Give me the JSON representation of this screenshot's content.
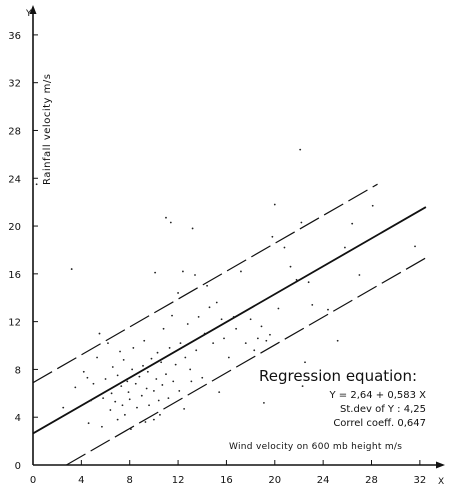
{
  "chart_data": {
    "type": "scatter",
    "title": "",
    "x_axis_letter": "X",
    "y_axis_letter": "Y",
    "xlabel": "Wind  velocity  on 600 mb height  m/s",
    "ylabel": "Rainfall velocity  m/s",
    "xlim": [
      0,
      33.5
    ],
    "ylim": [
      0,
      38
    ],
    "xticks": [
      0,
      4,
      8,
      12,
      16,
      20,
      24,
      28,
      32
    ],
    "yticks": [
      0,
      4,
      8,
      12,
      16,
      20,
      24,
      28,
      32,
      36
    ],
    "grid": false,
    "regression": {
      "intercept": 2.64,
      "slope": 0.583,
      "band_offset": 4.25,
      "x_range": [
        0,
        32.5
      ]
    },
    "annotation": {
      "title": "Regression equation:",
      "lines": [
        "Y = 2,64 + 0,583 X",
        "St.dev  of  Y : 4,25",
        "Correl coeff.  0,647"
      ]
    },
    "points": [
      [
        2.5,
        4.8
      ],
      [
        3.2,
        16.4
      ],
      [
        3.5,
        6.5
      ],
      [
        4.2,
        7.8
      ],
      [
        4.5,
        7.3
      ],
      [
        4.8,
        5.4
      ],
      [
        4.6,
        3.5
      ],
      [
        5.0,
        6.8
      ],
      [
        5.3,
        9.0
      ],
      [
        5.5,
        11.0
      ],
      [
        5.8,
        5.6
      ],
      [
        5.7,
        3.2
      ],
      [
        6.0,
        7.2
      ],
      [
        6.2,
        10.2
      ],
      [
        6.4,
        4.6
      ],
      [
        6.5,
        6.0
      ],
      [
        6.6,
        8.2
      ],
      [
        6.8,
        5.3
      ],
      [
        7.0,
        7.5
      ],
      [
        7.0,
        3.8
      ],
      [
        7.2,
        9.5
      ],
      [
        7.3,
        6.6
      ],
      [
        7.4,
        5.0
      ],
      [
        7.5,
        8.8
      ],
      [
        7.6,
        4.2
      ],
      [
        7.8,
        7.0
      ],
      [
        7.9,
        6.1
      ],
      [
        8.0,
        5.5
      ],
      [
        8.1,
        3.0
      ],
      [
        8.2,
        8.0
      ],
      [
        8.3,
        9.8
      ],
      [
        8.5,
        6.8
      ],
      [
        8.6,
        4.8
      ],
      [
        8.8,
        7.4
      ],
      [
        9.0,
        5.8
      ],
      [
        9.1,
        8.3
      ],
      [
        9.2,
        10.4
      ],
      [
        9.3,
        3.6
      ],
      [
        9.4,
        6.4
      ],
      [
        9.5,
        7.8
      ],
      [
        9.6,
        5.0
      ],
      [
        9.8,
        8.9
      ],
      [
        10.0,
        6.2
      ],
      [
        10.0,
        3.8
      ],
      [
        10.1,
        16.1
      ],
      [
        10.2,
        7.2
      ],
      [
        10.3,
        9.4
      ],
      [
        10.4,
        5.4
      ],
      [
        10.5,
        4.2
      ],
      [
        10.6,
        8.6
      ],
      [
        10.7,
        6.7
      ],
      [
        10.8,
        11.4
      ],
      [
        11.0,
        7.6
      ],
      [
        11.0,
        20.7
      ],
      [
        11.2,
        5.6
      ],
      [
        11.3,
        9.8
      ],
      [
        11.4,
        20.3
      ],
      [
        11.5,
        12.5
      ],
      [
        11.6,
        7.0
      ],
      [
        11.8,
        8.4
      ],
      [
        12.0,
        14.4
      ],
      [
        12.1,
        6.2
      ],
      [
        12.2,
        10.2
      ],
      [
        12.4,
        16.2
      ],
      [
        12.5,
        4.7
      ],
      [
        12.6,
        9.0
      ],
      [
        12.8,
        11.8
      ],
      [
        13.0,
        8.0
      ],
      [
        13.1,
        7.0
      ],
      [
        13.2,
        19.8
      ],
      [
        13.4,
        15.9
      ],
      [
        13.5,
        9.6
      ],
      [
        13.7,
        12.4
      ],
      [
        14.0,
        7.3
      ],
      [
        14.2,
        11.0
      ],
      [
        14.4,
        15.0
      ],
      [
        14.6,
        13.2
      ],
      [
        14.9,
        10.2
      ],
      [
        15.2,
        13.6
      ],
      [
        15.4,
        6.1
      ],
      [
        15.6,
        12.2
      ],
      [
        15.8,
        10.6
      ],
      [
        16.2,
        9.0
      ],
      [
        16.6,
        12.4
      ],
      [
        16.8,
        11.4
      ],
      [
        17.2,
        16.2
      ],
      [
        17.6,
        10.2
      ],
      [
        18.0,
        12.2
      ],
      [
        18.3,
        9.6
      ],
      [
        18.6,
        10.6
      ],
      [
        18.9,
        11.6
      ],
      [
        19.1,
        5.2
      ],
      [
        19.3,
        10.4
      ],
      [
        19.6,
        10.9
      ],
      [
        19.8,
        19.1
      ],
      [
        20.0,
        21.8
      ],
      [
        20.3,
        13.1
      ],
      [
        20.8,
        18.2
      ],
      [
        21.3,
        16.6
      ],
      [
        21.8,
        15.5
      ],
      [
        22.1,
        26.4
      ],
      [
        22.2,
        20.3
      ],
      [
        22.3,
        6.6
      ],
      [
        22.5,
        8.6
      ],
      [
        22.8,
        15.3
      ],
      [
        23.1,
        13.4
      ],
      [
        24.4,
        13.0
      ],
      [
        25.2,
        10.4
      ],
      [
        25.8,
        18.2
      ],
      [
        26.4,
        20.2
      ],
      [
        27.0,
        15.9
      ],
      [
        28.1,
        21.7
      ],
      [
        31.6,
        18.3
      ],
      [
        0.3,
        23.5
      ]
    ]
  }
}
